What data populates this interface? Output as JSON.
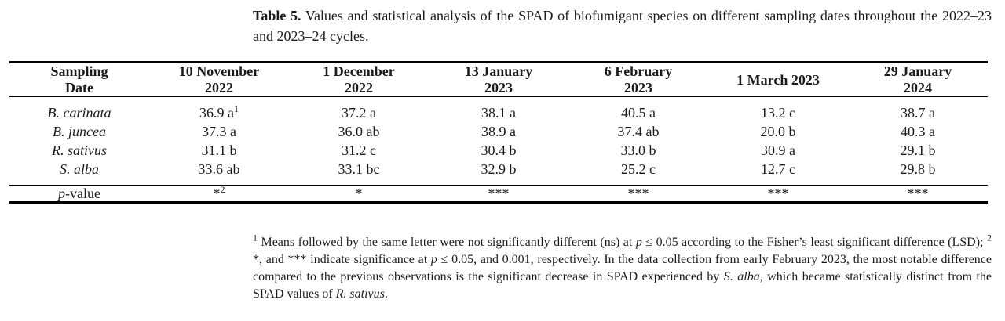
{
  "caption": {
    "label": "Table 5.",
    "text": " Values and statistical analysis of the SPAD of biofumigant species on different sampling dates throughout the 2022–23 and 2023–24 cycles."
  },
  "table": {
    "columns": [
      {
        "l1": "Sampling",
        "l2": "Date"
      },
      {
        "l1": "10 November",
        "l2": "2022"
      },
      {
        "l1": "1 December",
        "l2": "2022"
      },
      {
        "l1": "13 January",
        "l2": "2023"
      },
      {
        "l1": "6 February",
        "l2": "2023"
      },
      {
        "l1": "1 March 2023",
        "l2": ""
      },
      {
        "l1": "29 January",
        "l2": "2024"
      }
    ],
    "rows": [
      {
        "species": "B. carinata",
        "cells": [
          {
            "v": "36.9 a",
            "sup": "1"
          },
          {
            "v": "37.2 a"
          },
          {
            "v": "38.1 a"
          },
          {
            "v": "40.5 a"
          },
          {
            "v": "13.2 c"
          },
          {
            "v": "38.7 a"
          }
        ]
      },
      {
        "species": "B. juncea",
        "cells": [
          {
            "v": "37.3 a"
          },
          {
            "v": "36.0 ab"
          },
          {
            "v": "38.9 a"
          },
          {
            "v": "37.4 ab"
          },
          {
            "v": "20.0 b"
          },
          {
            "v": "40.3 a"
          }
        ]
      },
      {
        "species": "R. sativus",
        "cells": [
          {
            "v": "31.1 b"
          },
          {
            "v": "31.2 c"
          },
          {
            "v": "30.4 b"
          },
          {
            "v": "33.0 b"
          },
          {
            "v": "30.9 a"
          },
          {
            "v": "29.1 b"
          }
        ]
      },
      {
        "species": "S. alba",
        "cells": [
          {
            "v": "33.6 ab"
          },
          {
            "v": "33.1 bc"
          },
          {
            "v": "32.9 b"
          },
          {
            "v": "25.2 c"
          },
          {
            "v": "12.7 c"
          },
          {
            "v": "29.8 b"
          }
        ]
      }
    ],
    "pvalue": {
      "label_italic": "p",
      "label_rest": "-value",
      "cells": [
        {
          "v": "*",
          "sup": "2"
        },
        {
          "v": "*"
        },
        {
          "v": "***"
        },
        {
          "v": "***"
        },
        {
          "v": "***"
        },
        {
          "v": "***"
        }
      ]
    }
  },
  "footnote": {
    "segments": [
      {
        "t": "1",
        "s": "sup"
      },
      {
        "t": " Means followed by the same letter were not significantly different (ns) at ",
        "s": ""
      },
      {
        "t": "p",
        "s": "i"
      },
      {
        "t": " ≤ 0.05 according to the Fisher’s least significant difference (LSD); ",
        "s": ""
      },
      {
        "t": "2",
        "s": "sup"
      },
      {
        "t": " *, and *** indicate significance at ",
        "s": ""
      },
      {
        "t": "p",
        "s": "i"
      },
      {
        "t": " ≤ 0.05, and 0.001, respectively. In the data collection from early February 2023, the most notable difference compared to the previous observations is the significant decrease in SPAD experienced by ",
        "s": ""
      },
      {
        "t": "S. alba",
        "s": "i"
      },
      {
        "t": ", which became statistically distinct from the SPAD values of ",
        "s": ""
      },
      {
        "t": "R. sativus",
        "s": "i"
      },
      {
        "t": ".",
        "s": ""
      }
    ]
  },
  "colors": {
    "text": "#1b1b1b",
    "rule": "#000000",
    "background": "#ffffff"
  }
}
